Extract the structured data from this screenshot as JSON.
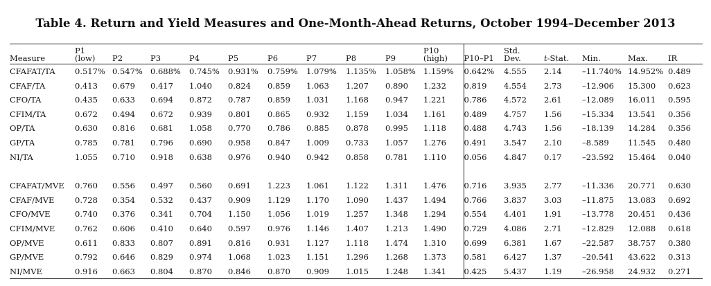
{
  "title": "Table 4. Return and Yield Measures and One-Month-Ahead Returns, October 1994–December 2013",
  "headers": [
    {
      "line1": "",
      "line2": "Measure"
    },
    {
      "line1": "P1",
      "line2": "(low)"
    },
    {
      "line1": "",
      "line2": "P2"
    },
    {
      "line1": "",
      "line2": "P3"
    },
    {
      "line1": "",
      "line2": "P4"
    },
    {
      "line1": "",
      "line2": "P5"
    },
    {
      "line1": "",
      "line2": "P6"
    },
    {
      "line1": "",
      "line2": "P7"
    },
    {
      "line1": "",
      "line2": "P8"
    },
    {
      "line1": "",
      "line2": "P9"
    },
    {
      "line1": "P10",
      "line2": "(high)"
    },
    {
      "line1": "",
      "line2": "P10–P1"
    },
    {
      "line1": "Std.",
      "line2": "Dev."
    },
    {
      "line1": "",
      "line2": "t-Stat."
    },
    {
      "line1": "",
      "line2": "Min."
    },
    {
      "line1": "",
      "line2": "Max."
    },
    {
      "line1": "",
      "line2": "IR"
    }
  ],
  "groups": [
    {
      "rows": [
        [
          "CFAFAT/TA",
          "0.517%",
          "0.547%",
          "0.688%",
          "0.745%",
          "0.931%",
          "0.759%",
          "1.079%",
          "1.135%",
          "1.058%",
          "1.159%",
          "0.642%",
          "4.555",
          "2.14",
          "–11.740%",
          "14.952%",
          "0.489"
        ],
        [
          "CFAF/TA",
          "0.413",
          "0.679",
          "0.417",
          "1.040",
          "0.824",
          "0.859",
          "1.063",
          "1.207",
          "0.890",
          "1.232",
          "0.819",
          "4.554",
          "2.73",
          "–12.906",
          "15.300",
          "0.623"
        ],
        [
          "CFO/TA",
          "0.435",
          "0.633",
          "0.694",
          "0.872",
          "0.787",
          "0.859",
          "1.031",
          "1.168",
          "0.947",
          "1.221",
          "0.786",
          "4.572",
          "2.61",
          "–12.089",
          "16.011",
          "0.595"
        ],
        [
          "CFIM/TA",
          "0.672",
          "0.494",
          "0.672",
          "0.939",
          "0.801",
          "0.865",
          "0.932",
          "1.159",
          "1.034",
          "1.161",
          "0.489",
          "4.757",
          "1.56",
          "–15.334",
          "13.541",
          "0.356"
        ],
        [
          "OP/TA",
          "0.630",
          "0.816",
          "0.681",
          "1.058",
          "0.770",
          "0.786",
          "0.885",
          "0.878",
          "0.995",
          "1.118",
          "0.488",
          "4.743",
          "1.56",
          "–18.139",
          "14.284",
          "0.356"
        ],
        [
          "GP/TA",
          "0.785",
          "0.781",
          "0.796",
          "0.690",
          "0.958",
          "0.847",
          "1.009",
          "0.733",
          "1.057",
          "1.276",
          "0.491",
          "3.547",
          "2.10",
          "–8.589",
          "11.545",
          "0.480"
        ],
        [
          "NI/TA",
          "1.055",
          "0.710",
          "0.918",
          "0.638",
          "0.976",
          "0.940",
          "0.942",
          "0.858",
          "0.781",
          "1.110",
          "0.056",
          "4.847",
          "0.17",
          "–23.592",
          "15.464",
          "0.040"
        ]
      ]
    },
    {
      "rows": [
        [
          "CFAFAT/MVE",
          "0.760",
          "0.556",
          "0.497",
          "0.560",
          "0.691",
          "1.223",
          "1.061",
          "1.122",
          "1.311",
          "1.476",
          "0.716",
          "3.935",
          "2.77",
          "–11.336",
          "20.771",
          "0.630"
        ],
        [
          "CFAF/MVE",
          "0.728",
          "0.354",
          "0.532",
          "0.437",
          "0.909",
          "1.129",
          "1.170",
          "1.090",
          "1.437",
          "1.494",
          "0.766",
          "3.837",
          "3.03",
          "–11.875",
          "13.083",
          "0.692"
        ],
        [
          "CFO/MVE",
          "0.740",
          "0.376",
          "0.341",
          "0.704",
          "1.150",
          "1.056",
          "1.019",
          "1.257",
          "1.348",
          "1.294",
          "0.554",
          "4.401",
          "1.91",
          "–13.778",
          "20.451",
          "0.436"
        ],
        [
          "CFIM/MVE",
          "0.762",
          "0.606",
          "0.410",
          "0.640",
          "0.597",
          "0.976",
          "1.146",
          "1.407",
          "1.213",
          "1.490",
          "0.729",
          "4.086",
          "2.71",
          "–12.829",
          "12.088",
          "0.618"
        ],
        [
          "OP/MVE",
          "0.611",
          "0.833",
          "0.807",
          "0.891",
          "0.816",
          "0.931",
          "1.127",
          "1.118",
          "1.474",
          "1.310",
          "0.699",
          "6.381",
          "1.67",
          "–22.587",
          "38.757",
          "0.380"
        ],
        [
          "GP/MVE",
          "0.792",
          "0.646",
          "0.829",
          "0.974",
          "1.068",
          "1.023",
          "1.151",
          "1.296",
          "1.268",
          "1.373",
          "0.581",
          "6.427",
          "1.37",
          "–20.541",
          "43.622",
          "0.313"
        ],
        [
          "NI/MVE",
          "0.916",
          "0.663",
          "0.804",
          "0.870",
          "0.846",
          "0.870",
          "0.909",
          "1.015",
          "1.248",
          "1.341",
          "0.425",
          "5.437",
          "1.19",
          "–26.958",
          "24.932",
          "0.271"
        ]
      ]
    }
  ]
}
